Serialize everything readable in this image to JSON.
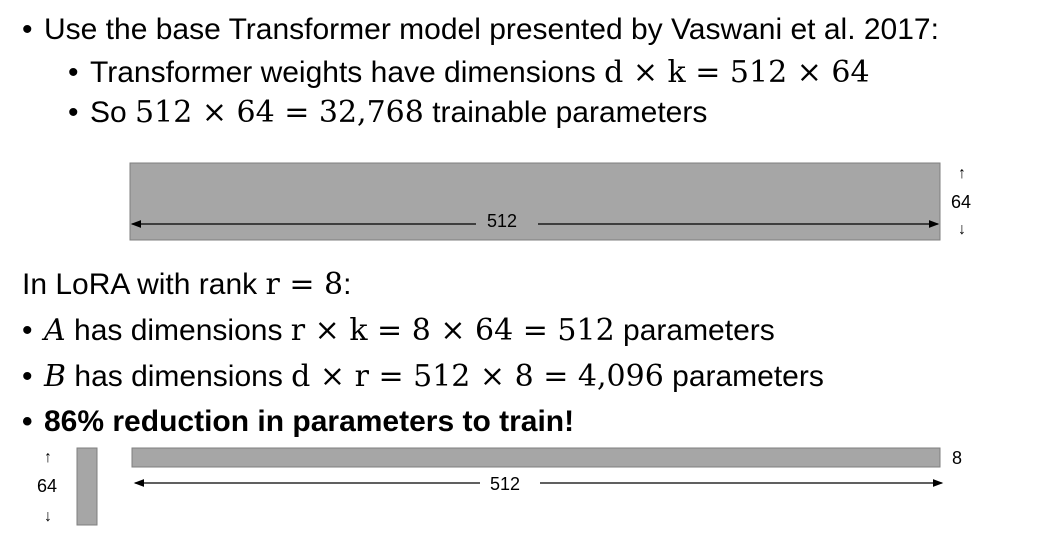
{
  "intro": {
    "bullet": "•",
    "text": "Use the base Transformer model presented by Vaswani et al. 2017:"
  },
  "sub_bullets": [
    {
      "bullet": "•",
      "prefix": "Transformer weights have dimensions ",
      "math": "d × k = 512 × 64",
      "suffix": ""
    },
    {
      "bullet": "•",
      "prefix": "So ",
      "math": "512 × 64 = 32,768",
      "suffix": " trainable parameters"
    }
  ],
  "full_matrix": {
    "width_label": "512",
    "height_label": "64",
    "color": "#a6a6a6"
  },
  "lora_heading": {
    "prefix": "In LoRA with rank ",
    "math": "r = 8",
    "suffix": ":"
  },
  "lora_bullets": [
    {
      "bullet": "•",
      "var": "A",
      "text": " has dimensions ",
      "math": "r × k = 8 × 64 = 512",
      "suffix": " parameters"
    },
    {
      "bullet": "•",
      "var": "B",
      "text": " has dimensions ",
      "math": "d × r = 512 × 8 = 4,096",
      "suffix": " parameters"
    }
  ],
  "highlight": {
    "bullet": "•",
    "text": "86% reduction in parameters to train!"
  },
  "lora_figure": {
    "a_height_label": "64",
    "b_width_label": "512",
    "b_height_label": "8",
    "color": "#a6a6a6"
  },
  "arrows": {
    "up": "↑",
    "down": "↓"
  }
}
